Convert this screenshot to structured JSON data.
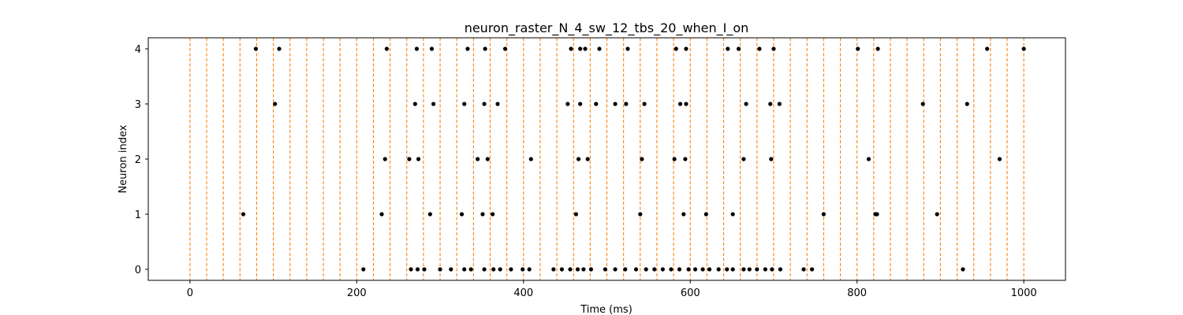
{
  "chart_data": {
    "type": "scatter",
    "title": "neuron_raster_N_4_sw_12_tbs_20_when_I_on",
    "xlabel": "Time (ms)",
    "ylabel": "Neuron index",
    "xlim": [
      -50,
      1050
    ],
    "ylim": [
      -0.2,
      4.2
    ],
    "xticks": [
      0,
      200,
      400,
      600,
      800,
      1000
    ],
    "yticks": [
      0,
      1,
      2,
      3,
      4
    ],
    "grid": false,
    "marker_color": "#000000",
    "vline_color": "#ff7f0e",
    "vline_style": "dashed",
    "vlines_x": [
      0,
      20,
      40,
      60,
      80,
      100,
      120,
      140,
      160,
      180,
      200,
      220,
      240,
      260,
      280,
      300,
      320,
      340,
      360,
      380,
      400,
      420,
      440,
      460,
      480,
      500,
      520,
      540,
      560,
      580,
      600,
      620,
      640,
      660,
      680,
      700,
      720,
      740,
      760,
      780,
      800,
      820,
      840,
      860,
      880,
      900,
      920,
      940,
      960,
      980,
      1000
    ],
    "spikes": [
      {
        "neuron": 4,
        "times": [
          79,
          107,
          236,
          272,
          290,
          333,
          354,
          378,
          457,
          468,
          474,
          491,
          525,
          583,
          595,
          645,
          658,
          683,
          700,
          801,
          825,
          956,
          1000
        ]
      },
      {
        "neuron": 3,
        "times": [
          102,
          270,
          292,
          329,
          353,
          369,
          453,
          468,
          487,
          510,
          523,
          545,
          588,
          595,
          667,
          696,
          707,
          879,
          932
        ]
      },
      {
        "neuron": 2,
        "times": [
          234,
          263,
          274,
          345,
          357,
          409,
          466,
          477,
          542,
          581,
          594,
          664,
          697,
          814,
          971
        ]
      },
      {
        "neuron": 1,
        "times": [
          64,
          230,
          288,
          326,
          351,
          363,
          463,
          540,
          592,
          619,
          651,
          760,
          822,
          824,
          896
        ]
      },
      {
        "neuron": 0,
        "times": [
          208,
          265,
          273,
          281,
          300,
          313,
          329,
          337,
          353,
          364,
          372,
          385,
          399,
          407,
          436,
          446,
          456,
          465,
          472,
          481,
          498,
          510,
          522,
          535,
          547,
          557,
          567,
          577,
          587,
          598,
          606,
          615,
          623,
          634,
          644,
          651,
          664,
          671,
          680,
          690,
          698,
          708,
          736,
          746,
          927
        ]
      }
    ]
  }
}
